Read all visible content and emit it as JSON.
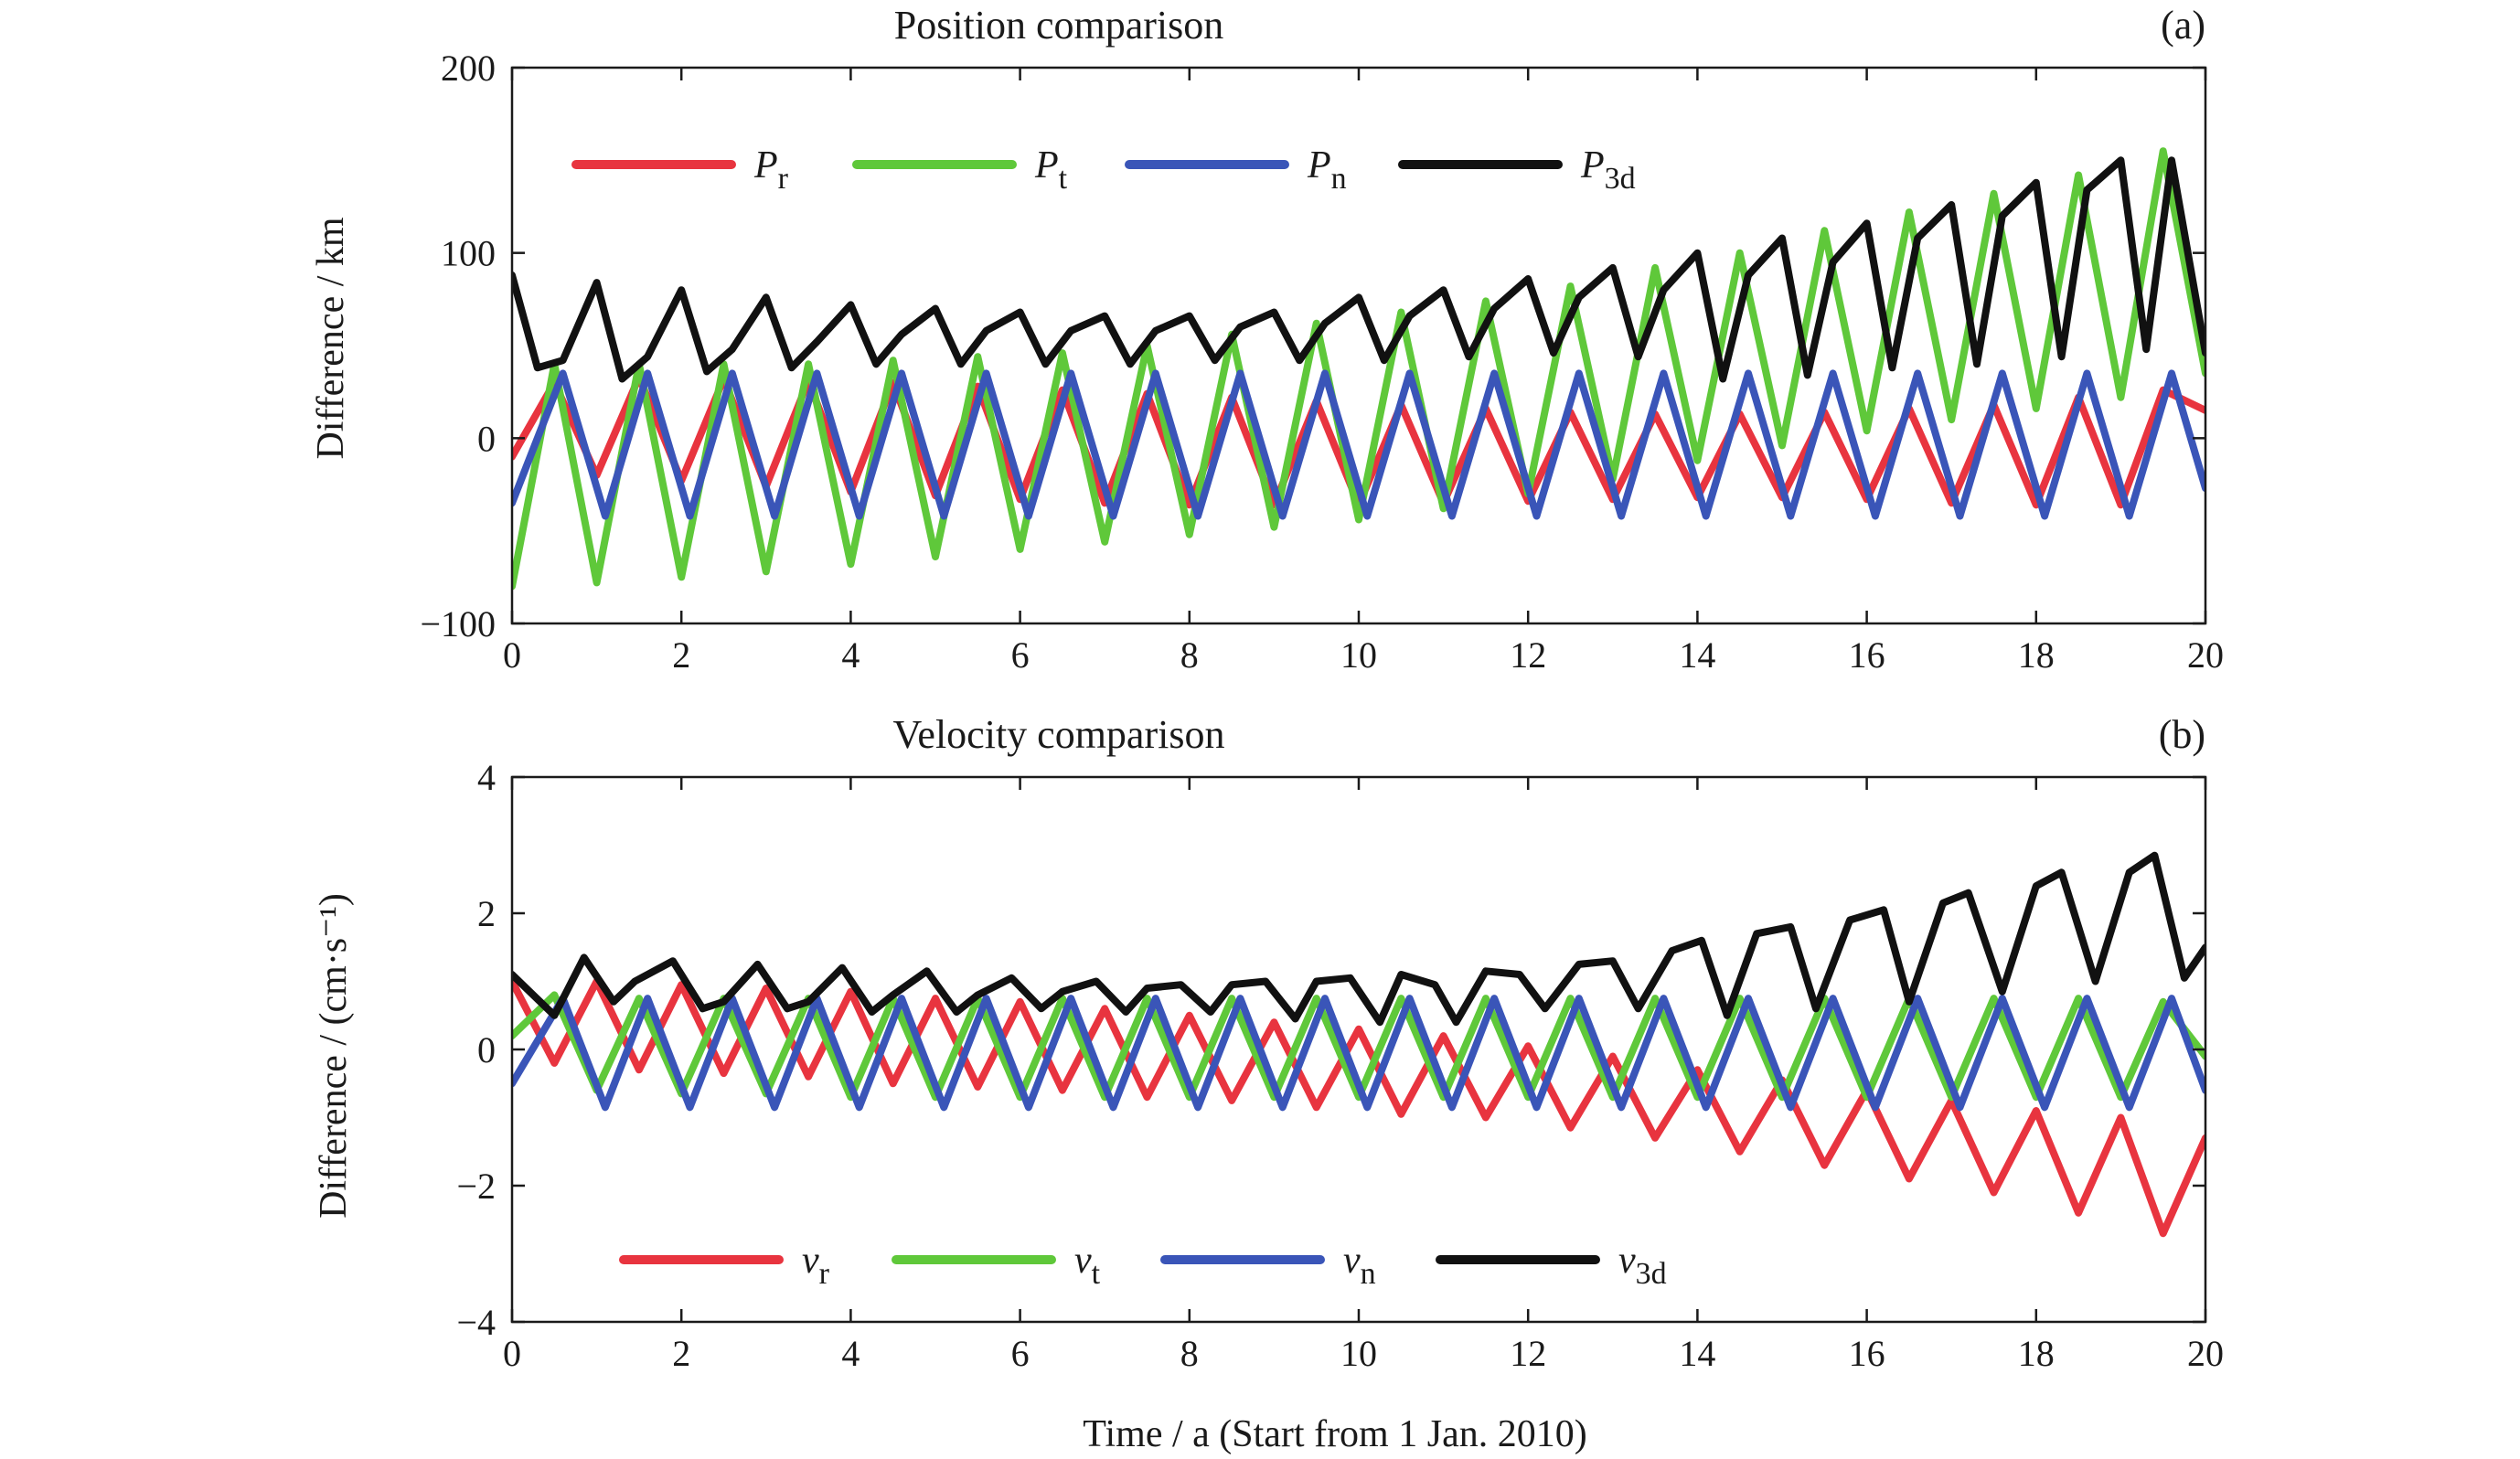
{
  "chart_data": [
    {
      "type": "line",
      "title": "Position comparison",
      "panel_label": "(a)",
      "xlabel": "",
      "ylabel": "Difference / km",
      "xlim": [
        0,
        20
      ],
      "ylim": [
        -100,
        200
      ],
      "x_ticks": [
        "0",
        "2",
        "4",
        "6",
        "8",
        "10",
        "12",
        "14",
        "16",
        "18",
        "20"
      ],
      "y_ticks": [
        "−100",
        "0",
        "100",
        "200"
      ],
      "legend_position": "top-left",
      "colors": {
        "red": "#e8343f",
        "green": "#5fc83a",
        "blue": "#3a55b8",
        "black": "#111111"
      },
      "series": [
        {
          "name": "P",
          "subscript": "r",
          "color": "#e8343f",
          "x": [
            0,
            0.5,
            1,
            1.5,
            2,
            2.5,
            3,
            3.5,
            4,
            4.5,
            5,
            5.5,
            6,
            6.5,
            7,
            7.5,
            8,
            8.5,
            9,
            9.5,
            10,
            10.5,
            11,
            11.5,
            12,
            12.5,
            13,
            13.5,
            14,
            14.5,
            15,
            15.5,
            16,
            16.5,
            17,
            17.5,
            18,
            18.5,
            19,
            19.5,
            20
          ],
          "values": [
            -10,
            30,
            -20,
            33,
            -23,
            32,
            -26,
            31,
            -29,
            30,
            -31,
            28,
            -33,
            26,
            -35,
            24,
            -36,
            22,
            -36,
            20,
            -36,
            18,
            -35,
            16,
            -34,
            14,
            -33,
            13,
            -32,
            13,
            -32,
            14,
            -33,
            16,
            -35,
            18,
            -36,
            22,
            -36,
            26,
            15
          ]
        },
        {
          "name": "P",
          "subscript": "t",
          "color": "#5fc83a",
          "x": [
            0,
            0.5,
            1,
            1.5,
            2,
            2.5,
            3,
            3.5,
            4,
            4.5,
            5,
            5.5,
            6,
            6.5,
            7,
            7.5,
            8,
            8.5,
            9,
            9.5,
            10,
            10.5,
            11,
            11.5,
            12,
            12.5,
            13,
            13.5,
            14,
            14.5,
            15,
            15.5,
            16,
            16.5,
            17,
            17.5,
            18,
            18.5,
            19,
            19.5,
            20
          ],
          "values": [
            -80,
            40,
            -78,
            40,
            -75,
            40,
            -72,
            40,
            -68,
            42,
            -64,
            44,
            -60,
            46,
            -56,
            50,
            -52,
            56,
            -48,
            62,
            -44,
            68,
            -38,
            74,
            -30,
            82,
            -22,
            92,
            -12,
            100,
            -4,
            112,
            4,
            122,
            10,
            132,
            16,
            142,
            22,
            155,
            35
          ]
        },
        {
          "name": "P",
          "subscript": "n",
          "color": "#3a55b8",
          "x": [
            0,
            0.6,
            1.1,
            1.6,
            2.1,
            2.6,
            3.1,
            3.6,
            4.1,
            4.6,
            5.1,
            5.6,
            6.1,
            6.6,
            7.1,
            7.6,
            8.1,
            8.6,
            9.1,
            9.6,
            10.1,
            10.6,
            11.1,
            11.6,
            12.1,
            12.6,
            13.1,
            13.6,
            14.1,
            14.6,
            15.1,
            15.6,
            16.1,
            16.6,
            17.1,
            17.6,
            18.1,
            18.6,
            19.1,
            19.6,
            20
          ],
          "values": [
            -35,
            35,
            -42,
            35,
            -42,
            35,
            -42,
            35,
            -42,
            35,
            -42,
            35,
            -42,
            35,
            -42,
            35,
            -42,
            35,
            -42,
            35,
            -42,
            35,
            -42,
            35,
            -42,
            35,
            -42,
            35,
            -42,
            35,
            -42,
            35,
            -42,
            35,
            -42,
            35,
            -42,
            35,
            -42,
            35,
            -27
          ]
        },
        {
          "name": "P",
          "subscript": "3d",
          "color": "#111111",
          "x": [
            0,
            0.3,
            0.6,
            1,
            1.3,
            1.6,
            2,
            2.3,
            2.6,
            3,
            3.3,
            3.6,
            4,
            4.3,
            4.6,
            5,
            5.3,
            5.6,
            6,
            6.3,
            6.6,
            7,
            7.3,
            7.6,
            8,
            8.3,
            8.6,
            9,
            9.3,
            9.6,
            10,
            10.3,
            10.6,
            11,
            11.3,
            11.6,
            12,
            12.3,
            12.6,
            13,
            13.3,
            13.6,
            14,
            14.3,
            14.6,
            15,
            15.3,
            15.6,
            16,
            16.3,
            16.6,
            17,
            17.3,
            17.6,
            18,
            18.3,
            18.6,
            19,
            19.3,
            19.6,
            20
          ],
          "values": [
            88,
            38,
            42,
            84,
            32,
            44,
            80,
            36,
            48,
            76,
            38,
            52,
            72,
            40,
            56,
            70,
            40,
            58,
            68,
            40,
            58,
            66,
            40,
            58,
            66,
            42,
            60,
            68,
            42,
            62,
            76,
            42,
            66,
            80,
            44,
            70,
            86,
            46,
            76,
            92,
            44,
            80,
            100,
            32,
            88,
            108,
            34,
            95,
            116,
            38,
            108,
            126,
            40,
            120,
            138,
            44,
            134,
            150,
            48,
            150,
            46
          ]
        }
      ]
    },
    {
      "type": "line",
      "title": "Velocity comparison",
      "panel_label": "(b)",
      "xlabel": "Time / a (Start from 1 Jan. 2010)",
      "ylabel": "Difference / (cm·s⁻¹)",
      "xlim": [
        0,
        20
      ],
      "ylim": [
        -4,
        4
      ],
      "x_ticks": [
        "0",
        "2",
        "4",
        "6",
        "8",
        "10",
        "12",
        "14",
        "16",
        "18",
        "20"
      ],
      "y_ticks": [
        "−4",
        "−2",
        "0",
        "2",
        "4"
      ],
      "legend_position": "bottom-left",
      "series": [
        {
          "name": "v",
          "subscript": "r",
          "color": "#e8343f",
          "x": [
            0,
            0.5,
            1,
            1.5,
            2,
            2.5,
            3,
            3.5,
            4,
            4.5,
            5,
            5.5,
            6,
            6.5,
            7,
            7.5,
            8,
            8.5,
            9,
            9.5,
            10,
            10.5,
            11,
            11.5,
            12,
            12.5,
            13,
            13.5,
            14,
            14.5,
            15,
            15.5,
            16,
            16.5,
            17,
            17.5,
            18,
            18.5,
            19,
            19.5,
            20
          ],
          "values": [
            1.0,
            -0.2,
            1.0,
            -0.3,
            0.95,
            -0.35,
            0.9,
            -0.4,
            0.85,
            -0.5,
            0.75,
            -0.55,
            0.7,
            -0.6,
            0.6,
            -0.7,
            0.5,
            -0.75,
            0.4,
            -0.85,
            0.3,
            -0.95,
            0.2,
            -1.0,
            0.05,
            -1.15,
            -0.1,
            -1.3,
            -0.3,
            -1.5,
            -0.45,
            -1.7,
            -0.6,
            -1.9,
            -0.75,
            -2.1,
            -0.9,
            -2.4,
            -1.0,
            -2.7,
            -1.3
          ]
        },
        {
          "name": "v",
          "subscript": "t",
          "color": "#5fc83a",
          "x": [
            0,
            0.5,
            1,
            1.5,
            2,
            2.5,
            3,
            3.5,
            4,
            4.5,
            5,
            5.5,
            6,
            6.5,
            7,
            7.5,
            8,
            8.5,
            9,
            9.5,
            10,
            10.5,
            11,
            11.5,
            12,
            12.5,
            13,
            13.5,
            14,
            14.5,
            15,
            15.5,
            16,
            16.5,
            17,
            17.5,
            18,
            18.5,
            19,
            19.5,
            20
          ],
          "values": [
            0.2,
            0.8,
            -0.6,
            0.75,
            -0.65,
            0.75,
            -0.65,
            0.75,
            -0.7,
            0.75,
            -0.7,
            0.75,
            -0.7,
            0.75,
            -0.7,
            0.75,
            -0.7,
            0.75,
            -0.7,
            0.75,
            -0.7,
            0.75,
            -0.7,
            0.75,
            -0.7,
            0.75,
            -0.7,
            0.75,
            -0.7,
            0.75,
            -0.7,
            0.75,
            -0.7,
            0.75,
            -0.7,
            0.75,
            -0.7,
            0.75,
            -0.7,
            0.7,
            -0.1
          ]
        },
        {
          "name": "v",
          "subscript": "n",
          "color": "#3a55b8",
          "x": [
            0,
            0.6,
            1.1,
            1.6,
            2.1,
            2.6,
            3.1,
            3.6,
            4.1,
            4.6,
            5.1,
            5.6,
            6.1,
            6.6,
            7.1,
            7.6,
            8.1,
            8.6,
            9.1,
            9.6,
            10.1,
            10.6,
            11.1,
            11.6,
            12.1,
            12.6,
            13.1,
            13.6,
            14.1,
            14.6,
            15.1,
            15.6,
            16.1,
            16.6,
            17.1,
            17.6,
            18.1,
            18.6,
            19.1,
            19.6,
            20
          ],
          "values": [
            -0.5,
            0.75,
            -0.85,
            0.75,
            -0.85,
            0.75,
            -0.85,
            0.75,
            -0.85,
            0.75,
            -0.85,
            0.75,
            -0.85,
            0.75,
            -0.85,
            0.75,
            -0.85,
            0.75,
            -0.85,
            0.75,
            -0.85,
            0.75,
            -0.85,
            0.75,
            -0.85,
            0.75,
            -0.85,
            0.75,
            -0.85,
            0.75,
            -0.85,
            0.75,
            -0.85,
            0.75,
            -0.85,
            0.75,
            -0.85,
            0.75,
            -0.85,
            0.75,
            -0.6
          ]
        },
        {
          "name": "v",
          "subscript": "3d",
          "color": "#111111",
          "x": [
            0,
            0.25,
            0.5,
            0.85,
            1.2,
            1.45,
            1.9,
            2.25,
            2.5,
            2.9,
            3.25,
            3.5,
            3.9,
            4.25,
            4.5,
            4.9,
            5.25,
            5.5,
            5.9,
            6.25,
            6.5,
            6.9,
            7.25,
            7.5,
            7.9,
            8.25,
            8.5,
            8.9,
            9.25,
            9.5,
            9.9,
            10.25,
            10.5,
            10.9,
            11.15,
            11.5,
            11.9,
            12.2,
            12.6,
            13.0,
            13.3,
            13.7,
            14.05,
            14.35,
            14.7,
            15.1,
            15.4,
            15.8,
            16.2,
            16.5,
            16.9,
            17.2,
            17.6,
            18.0,
            18.3,
            18.7,
            19.1,
            19.4,
            19.75,
            20
          ],
          "values": [
            1.1,
            0.8,
            0.5,
            1.35,
            0.7,
            1.0,
            1.3,
            0.6,
            0.7,
            1.25,
            0.6,
            0.7,
            1.2,
            0.55,
            0.8,
            1.15,
            0.55,
            0.8,
            1.05,
            0.6,
            0.85,
            1.0,
            0.55,
            0.9,
            0.95,
            0.55,
            0.95,
            1.0,
            0.45,
            1.0,
            1.05,
            0.4,
            1.1,
            0.95,
            0.4,
            1.15,
            1.1,
            0.6,
            1.25,
            1.3,
            0.6,
            1.45,
            1.6,
            0.5,
            1.7,
            1.8,
            0.6,
            1.9,
            2.05,
            0.7,
            2.15,
            2.3,
            0.85,
            2.4,
            2.6,
            1.0,
            2.6,
            2.85,
            1.05,
            1.5
          ]
        }
      ]
    }
  ]
}
